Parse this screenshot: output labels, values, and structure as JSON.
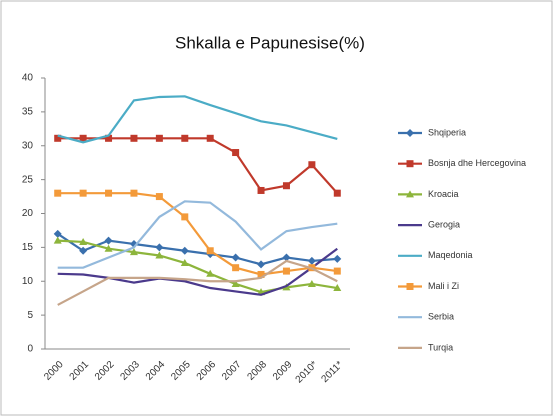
{
  "chart_data": {
    "type": "line",
    "title": "Shkalla e Papunesise(%)",
    "categories": [
      "2000",
      "2001",
      "2002",
      "2003",
      "2004",
      "2005",
      "2006",
      "2007",
      "2008",
      "2009",
      "2010*",
      "2011*"
    ],
    "ylim": [
      0,
      40
    ],
    "yticks": [
      0,
      5,
      10,
      15,
      20,
      25,
      30,
      35,
      40
    ],
    "grid": false,
    "legend": "right",
    "series": [
      {
        "name": "Shqiperia",
        "color": "#3a70ad",
        "marker": "diamond",
        "values": [
          17,
          14.5,
          16,
          15.5,
          15,
          14.5,
          14,
          13.5,
          12.5,
          13.5,
          13,
          13.3
        ]
      },
      {
        "name": "Bosnja dhe Hercegovina",
        "color": "#c0392b",
        "marker": "square",
        "values": [
          31.1,
          31.1,
          31.1,
          31.1,
          31.1,
          31.1,
          31.1,
          29,
          23.4,
          24.1,
          27.2,
          23
        ]
      },
      {
        "name": "Kroacia",
        "color": "#8db53c",
        "marker": "triangle",
        "values": [
          16,
          15.8,
          14.8,
          14.3,
          13.8,
          12.7,
          11.1,
          9.6,
          8.4,
          9.1,
          9.6,
          9
        ]
      },
      {
        "name": "Gerogia",
        "color": "#4b3a8c",
        "marker": "none",
        "values": [
          11.1,
          11,
          10.5,
          9.8,
          10.4,
          10,
          9,
          8.5,
          8,
          9.3,
          12,
          14.8
        ]
      },
      {
        "name": "Maqedonia",
        "color": "#4bacc6",
        "marker": "none",
        "values": [
          31.5,
          30.5,
          31.5,
          36.7,
          37.2,
          37.3,
          36,
          34.8,
          33.6,
          33,
          32,
          31
        ]
      },
      {
        "name": "Mali i Zi",
        "color": "#f39a3a",
        "marker": "square",
        "values": [
          23,
          23,
          23,
          23,
          22.5,
          19.5,
          14.5,
          12,
          11,
          11.5,
          12,
          11.5
        ]
      },
      {
        "name": "Serbia",
        "color": "#93b9dc",
        "marker": "none",
        "values": [
          12,
          12,
          13.5,
          15,
          19.5,
          21.8,
          21.6,
          18.8,
          14.7,
          17.4,
          18,
          18.5
        ]
      },
      {
        "name": "Turqia",
        "color": "#c6a58a",
        "marker": "none",
        "values": [
          6.5,
          8.5,
          10.5,
          10.5,
          10.5,
          10.3,
          10,
          10,
          10.5,
          13,
          11.9,
          10
        ]
      }
    ]
  }
}
